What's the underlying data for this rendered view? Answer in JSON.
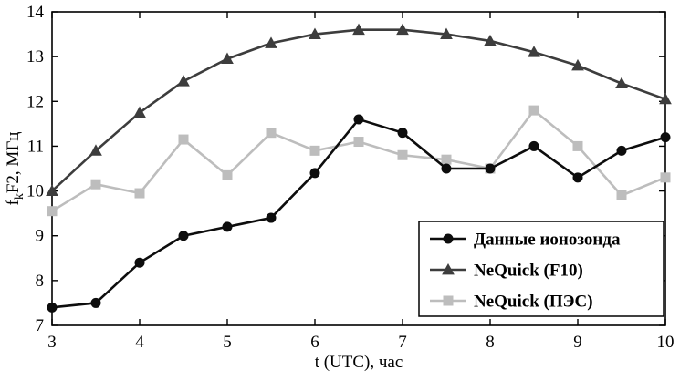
{
  "chart_data": {
    "type": "line",
    "title": "",
    "xlabel": "t (UTC), час",
    "ylabel": "fkF2, МГц",
    "ylabel_parts": {
      "pre": "f",
      "sub": "k",
      "post": "F2, МГц"
    },
    "xlim": [
      3,
      10
    ],
    "ylim": [
      7,
      14
    ],
    "xticks": [
      3,
      4,
      5,
      6,
      7,
      8,
      9,
      10
    ],
    "yticks": [
      7,
      8,
      9,
      10,
      11,
      12,
      13,
      14
    ],
    "grid": false,
    "legend_position": "lower right",
    "x": [
      3,
      3.5,
      4,
      4.5,
      5,
      5.5,
      6,
      6.5,
      7,
      7.5,
      8,
      8.5,
      9,
      9.5,
      10
    ],
    "series": [
      {
        "name": "Данные ионозонда",
        "marker": "circle",
        "color": "#0d0d0d",
        "values": [
          7.4,
          7.5,
          8.4,
          9.0,
          9.2,
          9.4,
          10.4,
          11.6,
          11.3,
          10.5,
          10.5,
          11.0,
          10.3,
          10.9,
          11.2
        ]
      },
      {
        "name": "NeQuick (F10)",
        "marker": "triangle",
        "color": "#3d3d3d",
        "values": [
          10.0,
          10.9,
          11.75,
          12.45,
          12.95,
          13.3,
          13.5,
          13.6,
          13.6,
          13.5,
          13.35,
          13.1,
          12.8,
          12.4,
          12.05
        ]
      },
      {
        "name": "NeQuick (ПЭС)",
        "marker": "square",
        "color": "#bdbdbd",
        "values": [
          9.55,
          10.15,
          9.95,
          11.15,
          10.35,
          11.3,
          10.9,
          11.1,
          10.8,
          10.7,
          10.5,
          11.8,
          11.0,
          9.9,
          10.3
        ]
      }
    ]
  }
}
